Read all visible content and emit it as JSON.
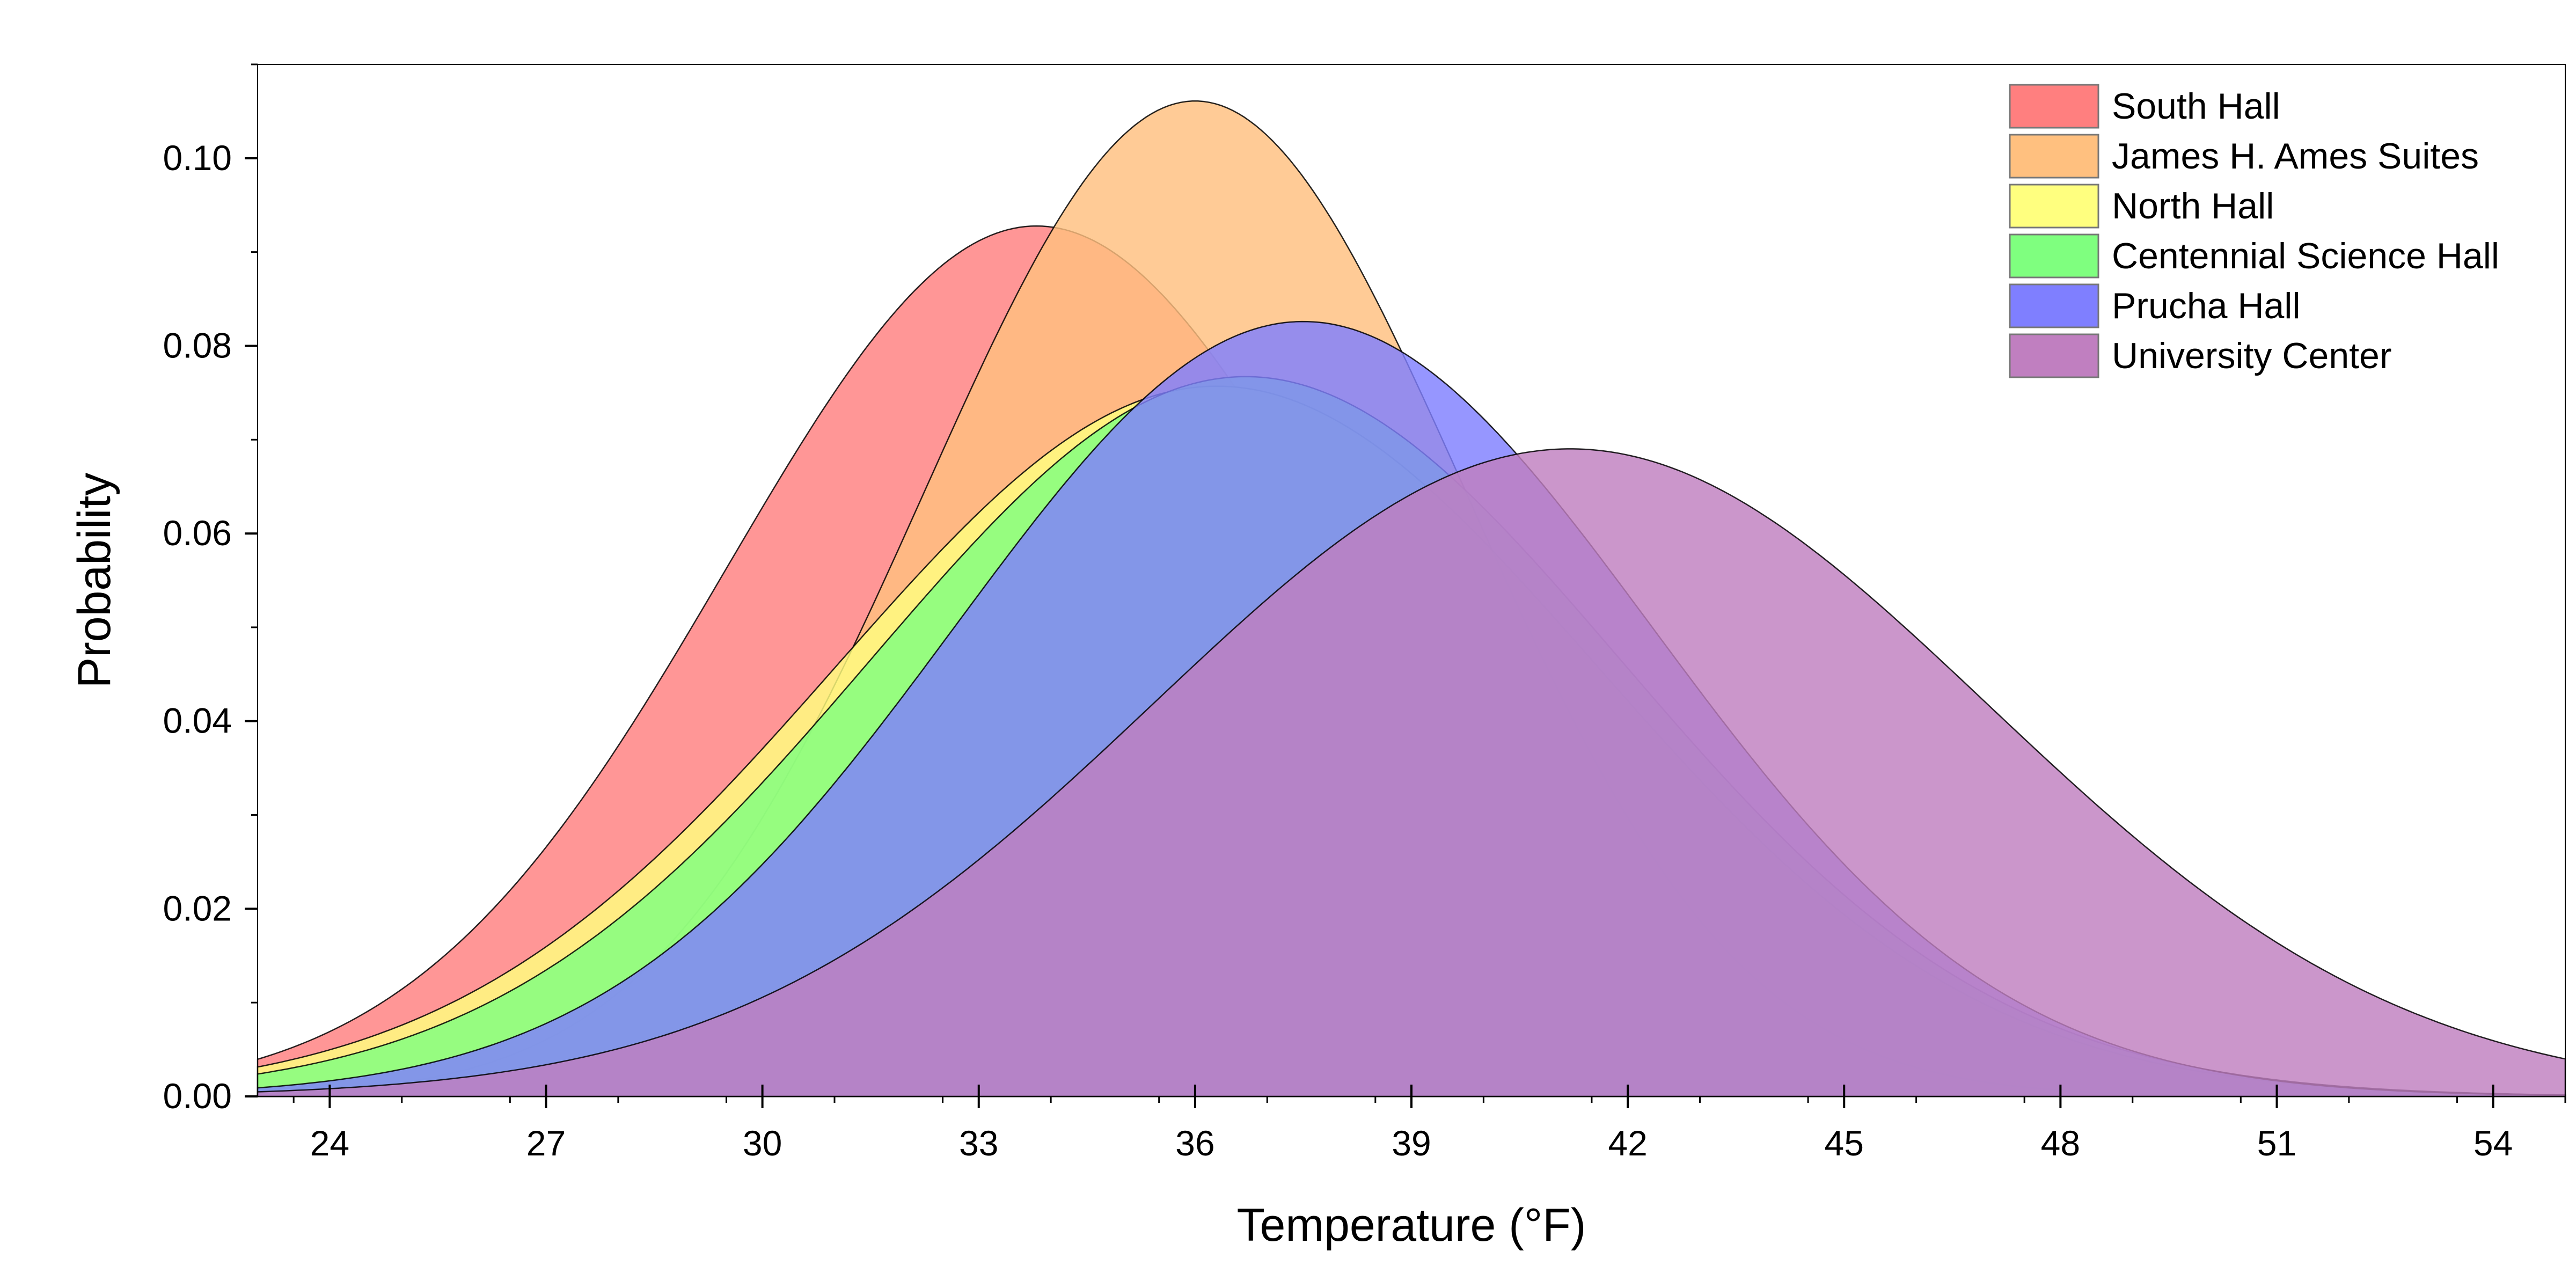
{
  "chart_data": {
    "type": "area",
    "title": "",
    "xlabel": "Temperature (°F)",
    "ylabel": "Probability",
    "xlim": [
      23,
      55
    ],
    "ylim": [
      0,
      0.11
    ],
    "x_ticks": [
      24,
      27,
      30,
      33,
      36,
      39,
      42,
      45,
      48,
      51,
      54
    ],
    "x_tick_labels": [
      "24",
      "27",
      "30",
      "33",
      "36",
      "39",
      "42",
      "45",
      "48",
      "51",
      "54"
    ],
    "y_ticks": [
      0.0,
      0.02,
      0.04,
      0.06,
      0.08,
      0.1
    ],
    "y_tick_labels": [
      "0.00",
      "0.02",
      "0.04",
      "0.06",
      "0.08",
      "0.10"
    ],
    "grid": false,
    "legend_position": "top-right",
    "distribution": "normal",
    "series": [
      {
        "name": "South Hall",
        "mean": 33.8,
        "sd": 4.3,
        "color": "#ff7f7f"
      },
      {
        "name": "James H. Ames Suites",
        "mean": 36.0,
        "sd": 3.76,
        "color": "#ffc07f"
      },
      {
        "name": "North Hall",
        "mean": 36.3,
        "sd": 5.27,
        "color": "#ffff7f"
      },
      {
        "name": "Centennial Science Hall",
        "mean": 36.7,
        "sd": 5.2,
        "color": "#7fff7f"
      },
      {
        "name": "Prucha Hall",
        "mean": 37.5,
        "sd": 4.83,
        "color": "#7f7fff"
      },
      {
        "name": "University Center",
        "mean": 41.2,
        "sd": 5.78,
        "color": "#c07fc0"
      }
    ]
  }
}
